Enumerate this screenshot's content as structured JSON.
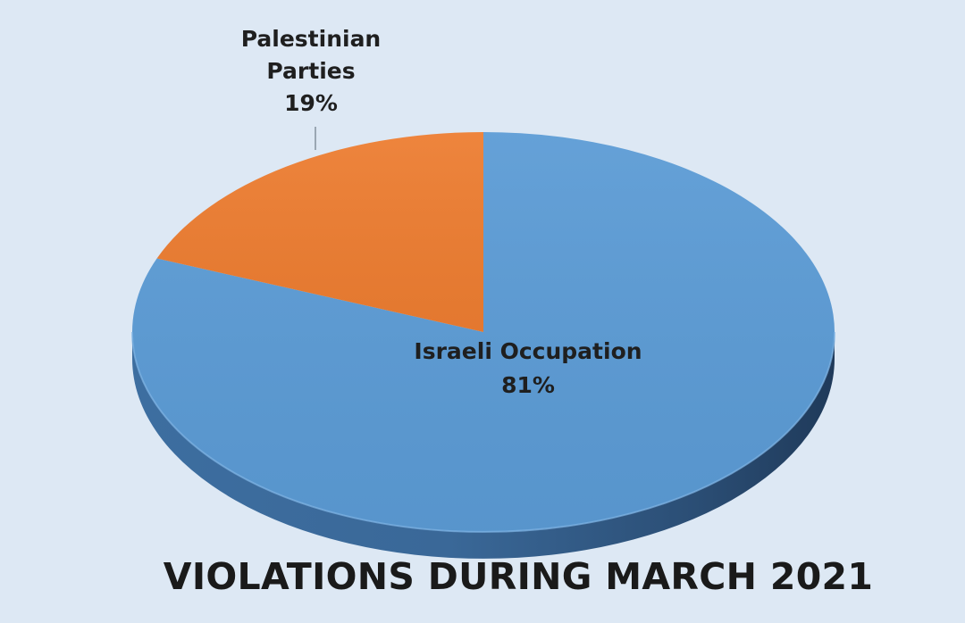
{
  "chart_data": {
    "type": "pie",
    "title": "VIOLATIONS DURING MARCH 2021",
    "slices": [
      {
        "label_lines": [
          "Israeli Occupation"
        ],
        "percent_text": "81%",
        "value": 81,
        "color": "#5b9bd5"
      },
      {
        "label_lines": [
          "Palestinian",
          "Parties"
        ],
        "percent_text": "19%",
        "value": 19,
        "color": "#ed7d31"
      }
    ],
    "style": "3d",
    "legend": "none"
  }
}
